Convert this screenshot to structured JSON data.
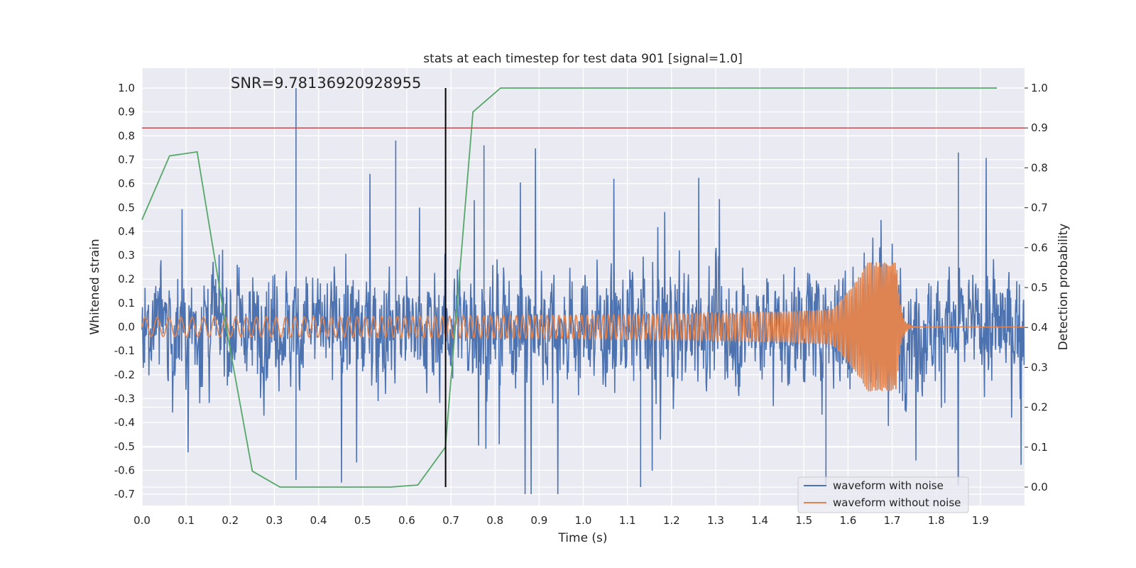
{
  "chart_data": {
    "type": "line",
    "title": "stats at each timestep for test data 901 [signal=1.0]",
    "xlabel": "Time (s)",
    "ylabel": "Whitened strain",
    "y2label": "Detection probability",
    "annotation": "SNR=9.78136920928955",
    "xlim": [
      0.0,
      2.0
    ],
    "ylim": [
      -0.75,
      1.08
    ],
    "y2lim": [
      -0.05,
      1.05
    ],
    "x_ticks": [
      "0.0",
      "0.1",
      "0.2",
      "0.3",
      "0.4",
      "0.5",
      "0.6",
      "0.7",
      "0.8",
      "0.9",
      "1.0",
      "1.1",
      "1.2",
      "1.3",
      "1.4",
      "1.5",
      "1.6",
      "1.7",
      "1.8",
      "1.9"
    ],
    "y_ticks": [
      "1.0",
      "0.9",
      "0.8",
      "0.7",
      "0.6",
      "0.5",
      "0.4",
      "0.3",
      "0.2",
      "0.1",
      "0.0",
      "-0.1",
      "-0.2",
      "-0.3",
      "-0.4",
      "-0.5",
      "-0.6",
      "-0.7"
    ],
    "y2_ticks": [
      "1.0",
      "0.9",
      "0.8",
      "0.7",
      "0.6",
      "0.5",
      "0.4",
      "0.3",
      "0.2",
      "0.1",
      "0.0"
    ],
    "grid": true,
    "legend_position": "bottom-right",
    "series": [
      {
        "name": "waveform with noise",
        "axis": "left",
        "color": "#4c72b0",
        "description_kind": "noise",
        "sample_count": 2048,
        "approx_amplitude_range": [
          -0.7,
          1.0
        ]
      },
      {
        "name": "waveform without noise",
        "axis": "left",
        "color": "#dd8452",
        "description_kind": "chirp",
        "merger_time": 1.71,
        "initial_amplitude": 0.04,
        "peak_amplitude": 0.27
      },
      {
        "name": "",
        "axis": "right",
        "color": "#55a868",
        "x": [
          0.0,
          0.0625,
          0.125,
          0.1875,
          0.25,
          0.3125,
          0.375,
          0.4375,
          0.5,
          0.5625,
          0.625,
          0.6875,
          0.75,
          0.8125,
          0.875,
          0.9375,
          1.0,
          1.0625,
          1.125,
          1.1875,
          1.25,
          1.3125,
          1.375,
          1.4375,
          1.5,
          1.5625,
          1.625,
          1.6875,
          1.75,
          1.8125,
          1.875,
          1.9375
        ],
        "values": [
          0.67,
          0.83,
          0.84,
          0.42,
          0.04,
          0.0,
          0.0,
          0.0,
          0.0,
          0.0,
          0.005,
          0.1,
          0.94,
          1.0,
          1.0,
          1.0,
          1.0,
          1.0,
          1.0,
          1.0,
          1.0,
          1.0,
          1.0,
          1.0,
          1.0,
          1.0,
          1.0,
          1.0,
          1.0,
          1.0,
          1.0,
          1.0
        ]
      }
    ],
    "hlines": [
      {
        "axis": "right",
        "value": 0.9,
        "color": "#c44e52"
      }
    ],
    "vlines": [
      {
        "x": 0.688,
        "ymin": 0.0,
        "ymax": 1.0,
        "axis": "right",
        "color": "#000000"
      }
    ]
  }
}
